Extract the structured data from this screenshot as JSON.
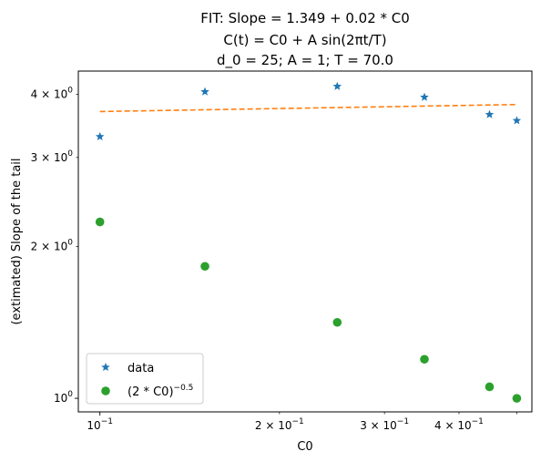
{
  "chart_data": {
    "type": "scatter",
    "title_lines": [
      "FIT: Slope  = 1.349 + 0.02 * C0",
      "C(t) = C0 + A sin(2πt/T)",
      "d_0 = 25; A = 1; T = 70.0"
    ],
    "xlabel": "C0",
    "ylabel": "(extimated) Slope of the tail",
    "xscale": "log",
    "yscale": "log",
    "xlim": [
      0.092,
      0.53
    ],
    "ylim": [
      0.94,
      4.45
    ],
    "x_ticks": [
      {
        "value": 0.1,
        "base": "10",
        "exp": "−1"
      },
      {
        "value": 0.2,
        "base": "2 × 10",
        "exp": "−1"
      },
      {
        "value": 0.3,
        "base": "3 × 10",
        "exp": "−1"
      },
      {
        "value": 0.4,
        "base": "4 × 10",
        "exp": "−1"
      }
    ],
    "y_ticks": [
      {
        "value": 1,
        "base": "10",
        "exp": "0"
      },
      {
        "value": 2,
        "base": "2 × 10",
        "exp": "0"
      },
      {
        "value": 3,
        "base": "3 × 10",
        "exp": "0"
      },
      {
        "value": 4,
        "base": "4 × 10",
        "exp": "0"
      }
    ],
    "series": [
      {
        "name": "data",
        "marker": "star",
        "color": "#1f77b4",
        "x": [
          0.1,
          0.15,
          0.25,
          0.35,
          0.45,
          0.5
        ],
        "y": [
          3.3,
          4.05,
          4.15,
          3.95,
          3.65,
          3.55
        ]
      },
      {
        "name": "(2 * C0)^-0.5",
        "marker": "circle",
        "color": "#2ca02c",
        "x": [
          0.1,
          0.15,
          0.25,
          0.35,
          0.45,
          0.5
        ],
        "y": [
          2.236,
          1.826,
          1.414,
          1.195,
          1.054,
          1.0
        ]
      },
      {
        "name": "fit",
        "style": "dashed",
        "color": "#ff7f0e",
        "x": [
          0.1,
          0.5
        ],
        "y": [
          3.7,
          3.82
        ]
      }
    ],
    "legend": {
      "position": "lower-left",
      "entries": [
        {
          "label": "data"
        },
        {
          "label_base": "(2 * C0)",
          "label_exp": "−0.5"
        }
      ]
    },
    "grid": false
  }
}
